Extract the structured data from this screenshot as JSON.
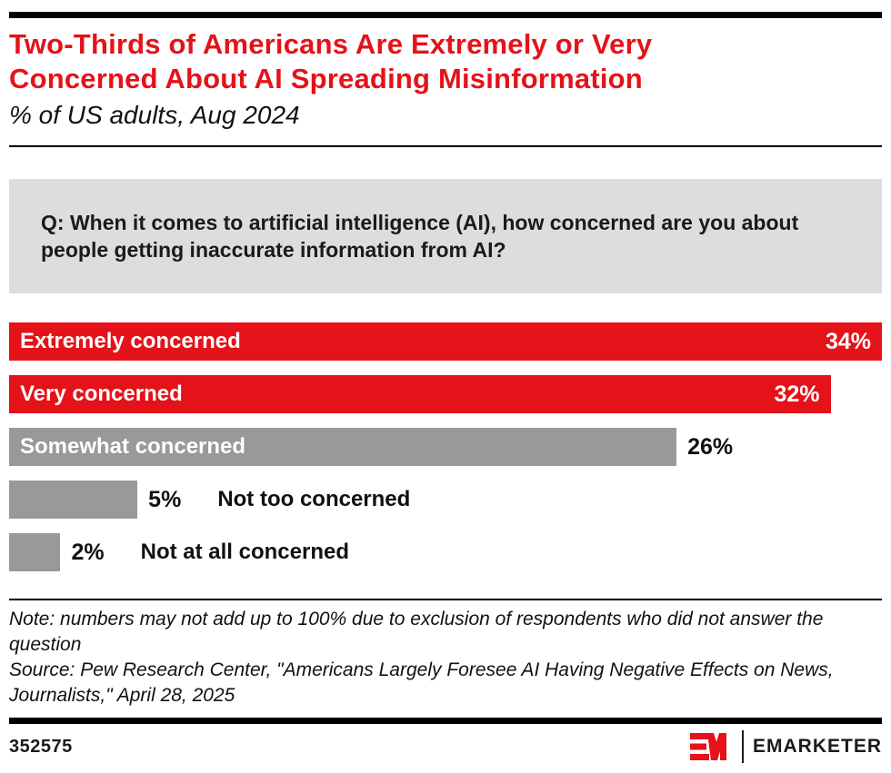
{
  "header": {
    "title": "Two-Thirds of Americans Are Extremely or Very Concerned About AI Spreading Misinformation",
    "title_lines": [
      "Two-Thirds of Americans Are Extremely or Very",
      "Concerned About AI Spreading Misinformation"
    ],
    "subtitle": "% of US adults, Aug 2024"
  },
  "question": "Q: When it comes to artificial intelligence (AI), how concerned are you about people getting inaccurate information from AI?",
  "chart_data": {
    "type": "bar",
    "orientation": "horizontal",
    "title": "Two-Thirds of Americans Are Extremely or Very Concerned About AI Spreading Misinformation",
    "subtitle": "% of US adults, Aug 2024",
    "unit": "% of US adults",
    "categories": [
      "Extremely concerned",
      "Very concerned",
      "Somewhat concerned",
      "Not too concerned",
      "Not at all concerned"
    ],
    "values": [
      34,
      32,
      26,
      5,
      2
    ],
    "xmax": 34,
    "grid": false,
    "legend": false,
    "bars": [
      {
        "label": "Extremely concerned",
        "value": 34,
        "value_label": "34%",
        "color": "#e51219"
      },
      {
        "label": "Very concerned",
        "value": 32,
        "value_label": "32%",
        "color": "#e51219"
      },
      {
        "label": "Somewhat concerned",
        "value": 26,
        "value_label": "26%",
        "color": "#999999"
      },
      {
        "label": "Not too concerned",
        "value": 5,
        "value_label": "5%",
        "color": "#999999"
      },
      {
        "label": "Not at all concerned",
        "value": 2,
        "value_label": "2%",
        "color": "#999999"
      }
    ]
  },
  "notes": {
    "note": "Note: numbers may not add up to 100% due to exclusion of respondents who did not answer the question",
    "source": "Source: Pew Research Center, \"Americans Largely Foresee AI Having Negative Effects on News, Journalists,\" April 28, 2025"
  },
  "footer": {
    "chart_id": "352575",
    "brand_name": "EMARKETER"
  },
  "colors": {
    "red": "#e51219",
    "gray_bar": "#999999",
    "question_bg": "#dddddd",
    "rule_black": "#000000"
  }
}
